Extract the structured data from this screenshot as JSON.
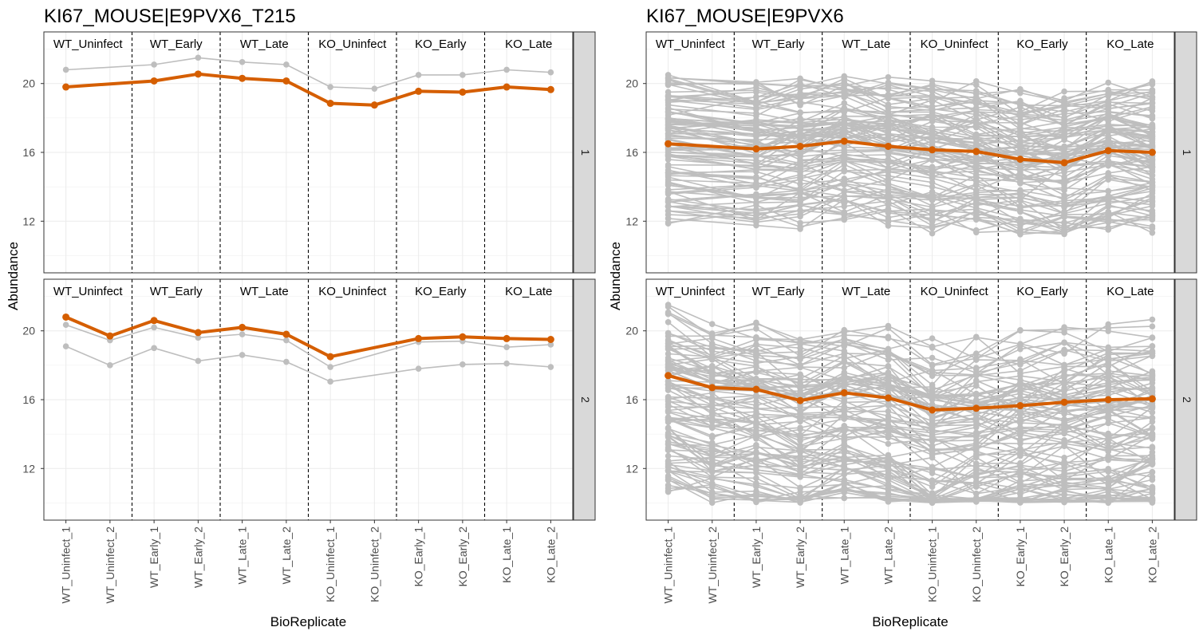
{
  "chart_data": [
    {
      "type": "line",
      "title": "KI67_MOUSE|E9PVX6_T215",
      "xlabel": "BioReplicate",
      "ylabel": "Abundance",
      "ylim": [
        9,
        23
      ],
      "yticks": [
        12,
        16,
        20
      ],
      "grid": true,
      "categories": [
        "WT_Uninfect_1",
        "WT_Uninfect_2",
        "WT_Early_1",
        "WT_Early_2",
        "WT_Late_1",
        "WT_Late_2",
        "KO_Uninfect_1",
        "KO_Uninfect_2",
        "KO_Early_1",
        "KO_Early_2",
        "KO_Late_1",
        "KO_Late_2"
      ],
      "conditions": [
        "WT_Uninfect",
        "WT_Early",
        "WT_Late",
        "KO_Uninfect",
        "KO_Early",
        "KO_Late"
      ],
      "highlight_color": "#D55E00",
      "background_color": "#BEBEBE",
      "facets": [
        {
          "strip": "1",
          "highlight": [
            19.8,
            null,
            20.15,
            20.55,
            20.3,
            20.15,
            18.85,
            18.75,
            19.55,
            19.5,
            19.8,
            19.65
          ],
          "background_series": [
            [
              20.8,
              null,
              21.1,
              21.5,
              21.25,
              21.1,
              19.8,
              19.7,
              20.5,
              20.5,
              20.8,
              20.65
            ]
          ]
        },
        {
          "strip": "2",
          "highlight": [
            20.8,
            19.7,
            20.6,
            19.9,
            20.2,
            19.8,
            18.5,
            null,
            19.55,
            19.65,
            19.55,
            19.5
          ],
          "background_series": [
            [
              20.35,
              19.45,
              20.2,
              19.6,
              19.8,
              19.45,
              17.9,
              null,
              19.35,
              19.4,
              19.05,
              19.2
            ],
            [
              19.1,
              18.0,
              19.0,
              18.25,
              18.6,
              18.2,
              17.05,
              null,
              17.8,
              18.05,
              18.1,
              17.9
            ]
          ]
        }
      ]
    },
    {
      "type": "line",
      "title": "KI67_MOUSE|E9PVX6",
      "xlabel": "BioReplicate",
      "ylabel": "Abundance",
      "ylim": [
        9,
        23
      ],
      "yticks": [
        12,
        16,
        20
      ],
      "grid": true,
      "categories": [
        "WT_Uninfect_1",
        "WT_Uninfect_2",
        "WT_Early_1",
        "WT_Early_2",
        "WT_Late_1",
        "WT_Late_2",
        "KO_Uninfect_1",
        "KO_Uninfect_2",
        "KO_Early_1",
        "KO_Early_2",
        "KO_Late_1",
        "KO_Late_2"
      ],
      "conditions": [
        "WT_Uninfect",
        "WT_Early",
        "WT_Late",
        "KO_Uninfect",
        "KO_Early",
        "KO_Late"
      ],
      "highlight_color": "#D55E00",
      "background_color": "#BEBEBE",
      "background_note": "many grey peptide-level series (~100)",
      "facets": [
        {
          "strip": "1",
          "highlight": [
            16.5,
            null,
            16.2,
            16.35,
            16.65,
            16.35,
            16.15,
            16.05,
            15.6,
            15.4,
            16.1,
            16.0
          ],
          "background_profile": [
            0,
            0,
            -0.3,
            -0.2,
            0.1,
            -0.2,
            -0.4,
            -0.5,
            -0.9,
            -1.1,
            -0.4,
            -0.5
          ],
          "background_range": [
            11.2,
            20.6
          ]
        },
        {
          "strip": "2",
          "highlight": [
            17.4,
            16.7,
            16.6,
            15.95,
            16.4,
            16.1,
            15.4,
            15.5,
            15.65,
            15.85,
            16.0,
            16.05
          ],
          "background_profile": [
            0,
            -0.8,
            -0.9,
            -1.4,
            -1.0,
            -1.3,
            -2.2,
            -2.0,
            -1.8,
            -1.6,
            -1.5,
            -1.4
          ],
          "background_range": [
            10.0,
            21.7
          ]
        }
      ]
    }
  ]
}
